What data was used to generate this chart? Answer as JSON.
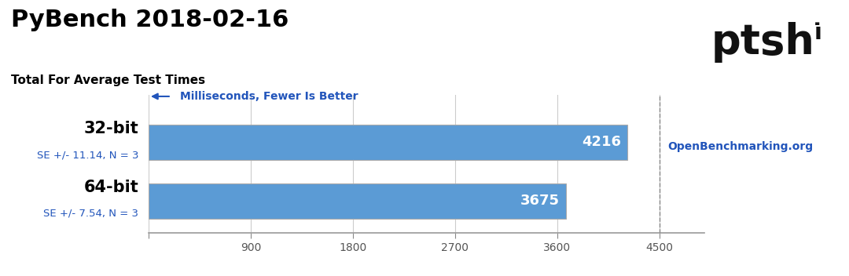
{
  "title": "PyBench 2018-02-16",
  "subtitle": "Total For Average Test Times",
  "categories": [
    "32-bit",
    "64-bit"
  ],
  "values": [
    4216,
    3675
  ],
  "se_labels": [
    "SE +/- 11.14, N = 3",
    "SE +/- 7.54, N = 3"
  ],
  "bar_color": "#5b9bd5",
  "bar_edge_color": "#aaaaaa",
  "value_labels": [
    "4216",
    "3675"
  ],
  "axis_label": "Milliseconds, Fewer Is Better",
  "axis_label_color": "#2255bb",
  "xticks": [
    0,
    900,
    1800,
    2700,
    3600,
    4500
  ],
  "xlim": [
    0,
    4900
  ],
  "dashed_line_x": 4500,
  "openbenchmarking_text": "OpenBenchmarking.org",
  "logo_text": "ptsh",
  "logo_bar_text": "|||",
  "title_fontsize": 22,
  "subtitle_fontsize": 11,
  "bar_label_fontsize": 13,
  "se_label_fontsize": 9.5,
  "axis_label_fontsize": 10,
  "tick_fontsize": 10,
  "category_fontsize": 15,
  "openbench_fontsize": 10,
  "logo_fontsize": 38
}
